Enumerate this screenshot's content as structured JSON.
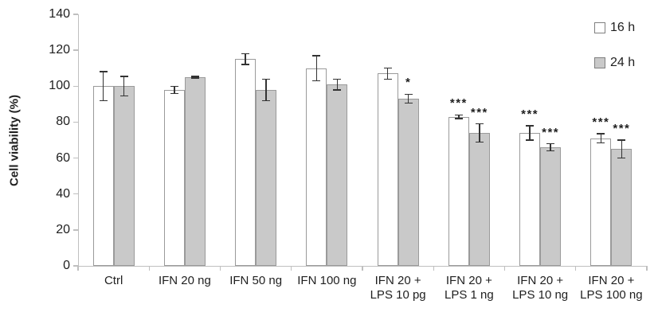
{
  "chart_data": {
    "type": "bar",
    "title": "",
    "ylabel": "Cell viability (%)",
    "xlabel": "",
    "ylim": [
      0,
      140
    ],
    "yticks": [
      0,
      20,
      40,
      60,
      80,
      100,
      120,
      140
    ],
    "grid": false,
    "legend_position": "top-right",
    "categories": [
      [
        "Ctrl"
      ],
      [
        "IFN 20 ng"
      ],
      [
        "IFN 50 ng"
      ],
      [
        "IFN 100 ng"
      ],
      [
        "IFN 20 +",
        "LPS 10 pg"
      ],
      [
        "IFN 20 +",
        "LPS 1 ng"
      ],
      [
        "IFN 20 +",
        "LPS 10 ng"
      ],
      [
        "IFN 20 +",
        "LPS 100 ng"
      ]
    ],
    "series": [
      {
        "name": "16 h",
        "values": [
          100,
          98,
          115,
          110,
          107,
          83,
          74,
          71
        ],
        "errors": [
          8,
          2,
          3,
          7,
          3,
          1,
          4,
          2.5
        ],
        "significance": [
          "",
          "",
          "",
          "",
          "",
          "***",
          "***",
          "***"
        ],
        "fill": "#ffffff"
      },
      {
        "name": "24 h",
        "values": [
          100,
          105,
          98,
          101,
          93,
          74,
          66,
          65
        ],
        "errors": [
          5.5,
          0.5,
          6,
          3,
          2.5,
          5,
          2,
          5
        ],
        "significance": [
          "",
          "",
          "",
          "",
          "*",
          "***",
          "***",
          "***"
        ],
        "fill": "#c9c9c9"
      }
    ],
    "colors": {
      "bar_border": "#9a9a9a",
      "axis": "#bfbfbf",
      "error_bar": "#333333",
      "text": "#1f1f1f",
      "background": "#ffffff"
    }
  }
}
